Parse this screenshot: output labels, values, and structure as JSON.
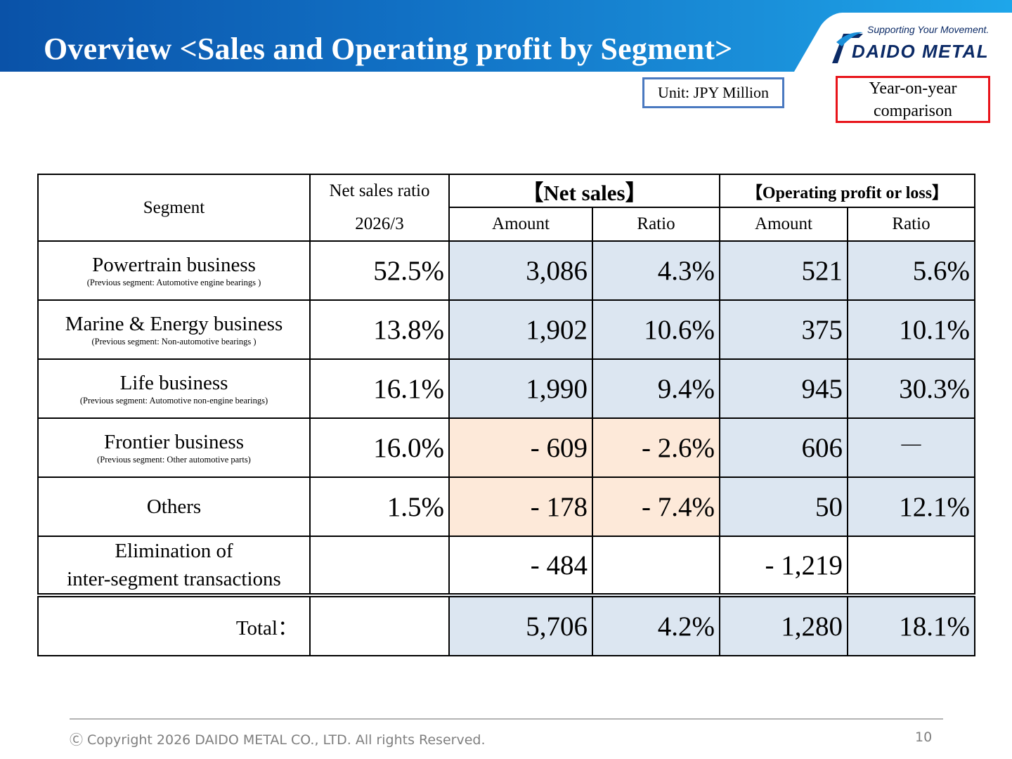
{
  "header": {
    "title": "Overview <Sales and Operating profit by Segment>",
    "slogan": "Supporting Your Movement.",
    "logo_text": "DAIDO METAL"
  },
  "unit_label": "Unit: JPY Million",
  "yoy_label": "Year-on-year comparison",
  "table": {
    "head": {
      "segment": "Segment",
      "ratio_title": "Net sales ratio",
      "ratio_period": "2026/3",
      "net_sales": "【Net sales】",
      "op_profit": "【Operating profit or loss】",
      "amount": "Amount",
      "ratio": "Ratio"
    },
    "rows": [
      {
        "name": "Powertrain business",
        "prev": "(Previous segment: Automotive engine bearings )",
        "share": "52.5%",
        "ns_amount": "3,086",
        "ns_ratio": "4.3%",
        "op_amount": "521",
        "op_ratio": "5.6%"
      },
      {
        "name": "Marine & Energy business",
        "prev": "(Previous segment: Non-automotive bearings )",
        "share": "13.8%",
        "ns_amount": "1,902",
        "ns_ratio": "10.6%",
        "op_amount": "375",
        "op_ratio": "10.1%"
      },
      {
        "name": "Life business",
        "prev": "(Previous segment: Automotive non-engine bearings)",
        "share": "16.1%",
        "ns_amount": "1,990",
        "ns_ratio": "9.4%",
        "op_amount": "945",
        "op_ratio": "30.3%"
      },
      {
        "name": "Frontier business",
        "prev": "(Previous segment: Other automotive parts)",
        "share": "16.0%",
        "ns_amount": "- 609",
        "ns_ratio": "- 2.6%",
        "op_amount": "606",
        "op_ratio": "―"
      },
      {
        "name": "Others",
        "prev": "",
        "share": "1.5%",
        "ns_amount": "- 178",
        "ns_ratio": "- 7.4%",
        "op_amount": "50",
        "op_ratio": "12.1%"
      }
    ],
    "elimination": {
      "line1": "Elimination of",
      "line2": "inter-segment transactions",
      "ns_amount": "- 484",
      "op_amount": "- 1,219"
    },
    "total": {
      "label": "Total：",
      "ns_amount": "5,706",
      "ns_ratio": "4.2%",
      "op_amount": "1,280",
      "op_ratio": "18.1%"
    }
  },
  "footer": {
    "copyright": "Ⓒ Copyright 2026 DAIDO METAL CO., LTD. All rights Reserved.",
    "page": "10"
  }
}
